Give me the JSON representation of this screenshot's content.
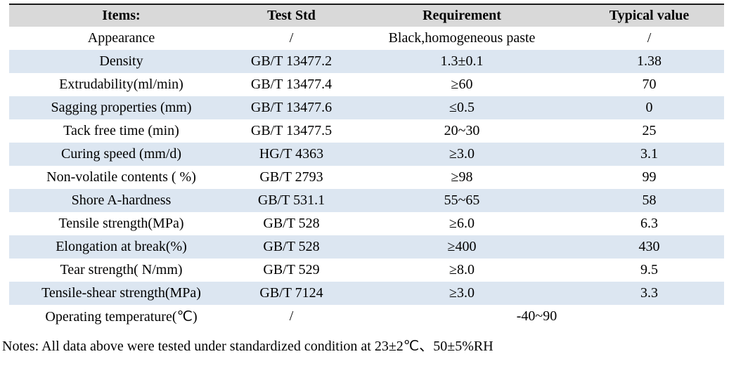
{
  "table": {
    "columns": [
      "Items:",
      "Test Std",
      "Requirement",
      "Typical value"
    ],
    "rows": [
      {
        "item": "Appearance",
        "test_std": "/",
        "requirement": "Black,homogeneous paste",
        "typical_value": "/"
      },
      {
        "item": "Density",
        "test_std": "GB/T 13477.2",
        "requirement": "1.3±0.1",
        "typical_value": "1.38"
      },
      {
        "item": "Extrudability(ml/min)",
        "test_std": "GB/T 13477.4",
        "requirement": "≥60",
        "typical_value": "70"
      },
      {
        "item": "Sagging properties (mm)",
        "test_std": "GB/T 13477.6",
        "requirement": "≤0.5",
        "typical_value": "0"
      },
      {
        "item": "Tack free time (min)",
        "test_std": "GB/T 13477.5",
        "requirement": "20~30",
        "typical_value": "25"
      },
      {
        "item": "Curing speed (mm/d)",
        "test_std": "HG/T 4363",
        "requirement": "≥3.0",
        "typical_value": "3.1"
      },
      {
        "item": "Non-volatile contents ( %)",
        "test_std": "GB/T 2793",
        "requirement": "≥98",
        "typical_value": "99"
      },
      {
        "item": "Shore A-hardness",
        "test_std": "GB/T 531.1",
        "requirement": "55~65",
        "typical_value": "58"
      },
      {
        "item": "Tensile strength(MPa)",
        "test_std": "GB/T 528",
        "requirement": "≥6.0",
        "typical_value": "6.3"
      },
      {
        "item": "Elongation at break(%)",
        "test_std": "GB/T 528",
        "requirement": "≥400",
        "typical_value": "430"
      },
      {
        "item": "Tear strength( N/mm)",
        "test_std": "GB/T 529",
        "requirement": "≥8.0",
        "typical_value": "9.5"
      },
      {
        "item": "Tensile-shear strength(MPa)",
        "test_std": "GB/T 7124",
        "requirement": "≥3.0",
        "typical_value": "3.3"
      },
      {
        "item": "Operating temperature(℃)",
        "test_std": "/",
        "requirement": "-40~90",
        "typical_value": null,
        "merged": true
      }
    ],
    "colors": {
      "header_bg": "#d9d9d9",
      "alt_row_bg": "#dce6f1",
      "top_border": "#1a1a1a",
      "text": "#000000"
    }
  },
  "notes": "Notes: All data above were tested under standardized condition at 23±2℃、50±5%RH"
}
